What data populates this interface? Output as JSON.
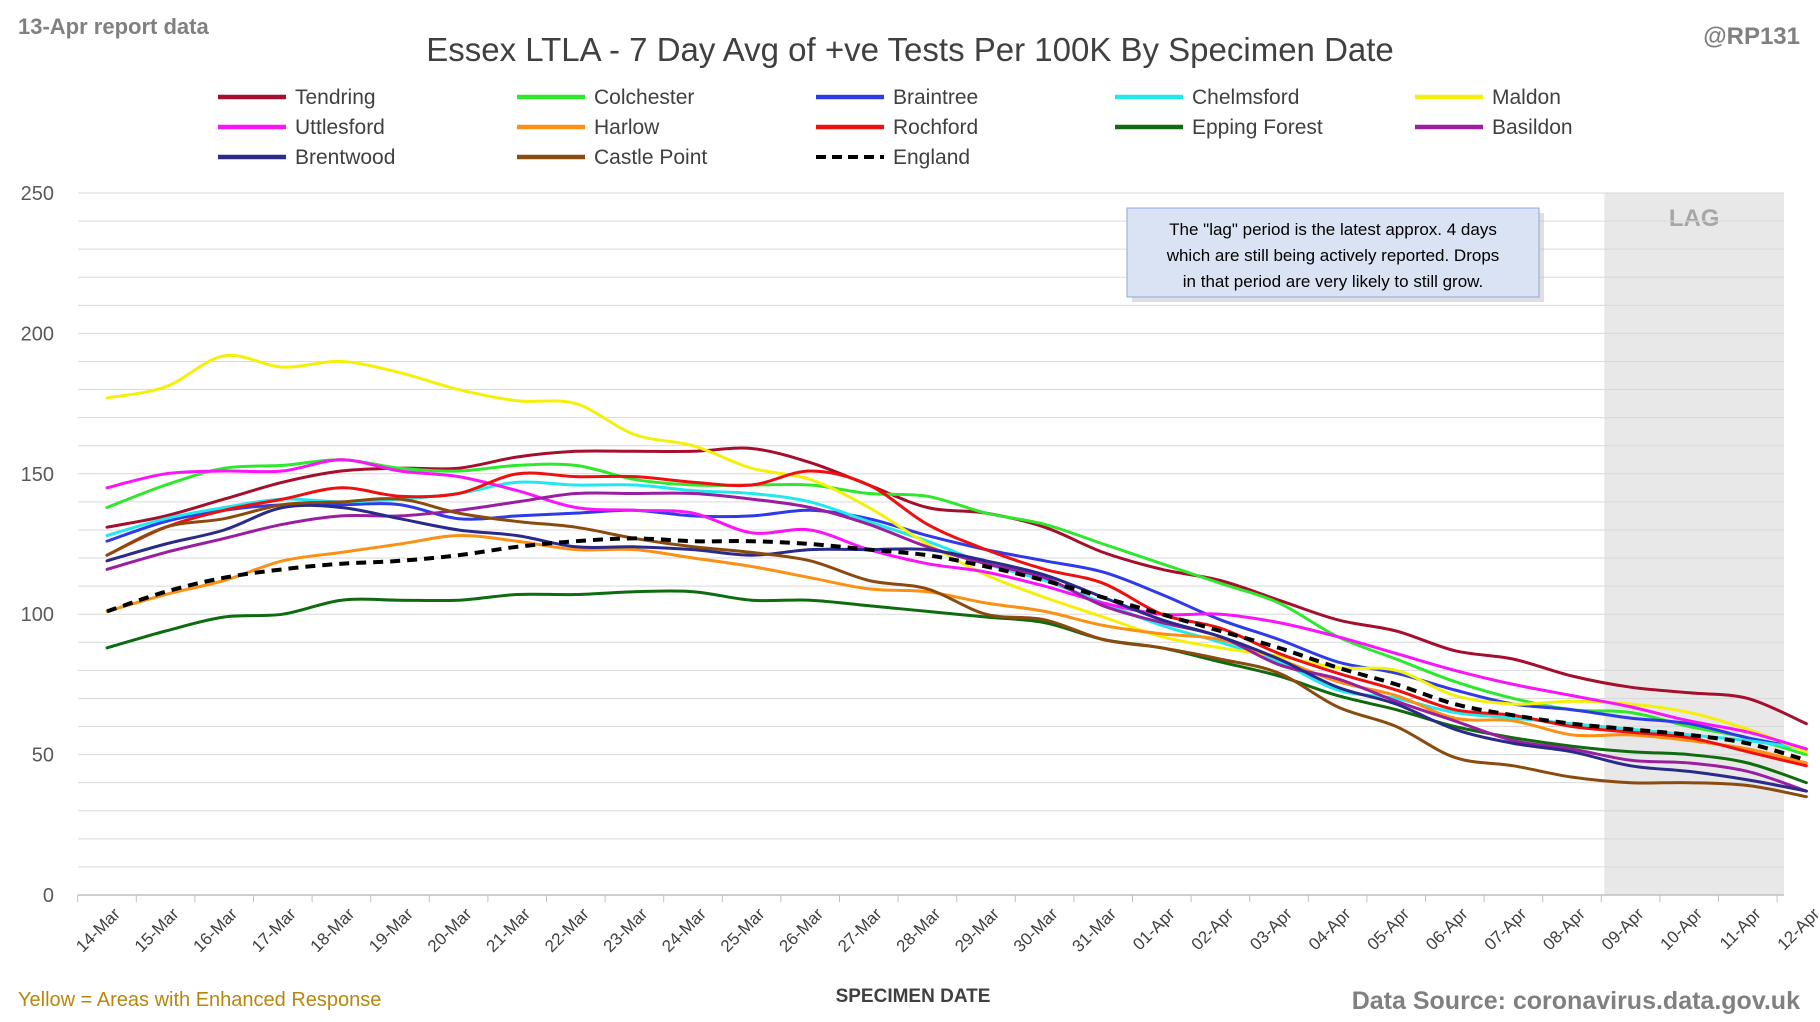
{
  "header": {
    "report_date": "13-Apr report data",
    "title": "Essex LTLA - 7 Day Avg of +ve Tests Per 100K By Specimen Date",
    "handle": "@RP131"
  },
  "footer": {
    "note": "Yellow = Areas with Enhanced Response",
    "source": "Data Source: coronavirus.data.gov.uk"
  },
  "annotation": {
    "lines": [
      "The \"lag\" period is the latest approx. 4 days",
      "which are still being actively reported.  Drops",
      "in that period are very likely to still grow."
    ]
  },
  "colors": {
    "title": "#404040",
    "report_date": "#808080",
    "footer_note": "#b8860b",
    "source": "#808080",
    "lag_fill": "#e8e8e8",
    "lag_label": "#a6a6a6",
    "grid": "#d9d9d9",
    "annotation_fill": "#dae3f3",
    "annotation_border": "#8faadc"
  },
  "chart_data": {
    "type": "line",
    "title": "Essex LTLA - 7 Day Avg of +ve Tests Per 100K By Specimen Date",
    "xlabel": "SPECIMEN DATE",
    "ylabel": "",
    "ylim": [
      0,
      250
    ],
    "yticks": [
      0,
      50,
      100,
      150,
      200,
      250
    ],
    "grid": true,
    "legend_position": "top",
    "lag_label": "LAG",
    "lag_start_index": 25,
    "categories": [
      "14-Mar",
      "15-Mar",
      "16-Mar",
      "17-Mar",
      "18-Mar",
      "19-Mar",
      "20-Mar",
      "21-Mar",
      "22-Mar",
      "23-Mar",
      "24-Mar",
      "25-Mar",
      "26-Mar",
      "27-Mar",
      "28-Mar",
      "29-Mar",
      "30-Mar",
      "31-Mar",
      "01-Apr",
      "02-Apr",
      "03-Apr",
      "04-Apr",
      "05-Apr",
      "06-Apr",
      "07-Apr",
      "08-Apr",
      "09-Apr",
      "10-Apr",
      "11-Apr",
      "12-Apr"
    ],
    "series": [
      {
        "name": "Tendring",
        "color": "#a50f2d",
        "dashed": false,
        "values": [
          131,
          135,
          141,
          147,
          151,
          152,
          152,
          156,
          158,
          158,
          158,
          159,
          154,
          146,
          138,
          136,
          131,
          122,
          116,
          112,
          105,
          98,
          94,
          87,
          84,
          78,
          74,
          72,
          70,
          61
        ]
      },
      {
        "name": "Colchester",
        "color": "#2ee82e",
        "dashed": false,
        "values": [
          138,
          146,
          152,
          153,
          155,
          152,
          151,
          153,
          153,
          148,
          146,
          146,
          146,
          143,
          142,
          136,
          132,
          125,
          118,
          111,
          104,
          92,
          84,
          76,
          70,
          66,
          65,
          60,
          56,
          50
        ]
      },
      {
        "name": "Braintree",
        "color": "#2e3be6",
        "dashed": false,
        "values": [
          126,
          133,
          137,
          139,
          139,
          139,
          134,
          135,
          136,
          137,
          135,
          135,
          137,
          134,
          128,
          123,
          119,
          115,
          107,
          98,
          91,
          83,
          79,
          73,
          68,
          66,
          63,
          61,
          56,
          52
        ]
      },
      {
        "name": "Chelmsford",
        "color": "#22e8ee",
        "dashed": false,
        "values": [
          128,
          134,
          138,
          141,
          140,
          141,
          143,
          147,
          146,
          146,
          144,
          143,
          140,
          133,
          126,
          118,
          112,
          104,
          96,
          90,
          83,
          73,
          70,
          65,
          63,
          61,
          59,
          57,
          55,
          52
        ]
      },
      {
        "name": "Maldon",
        "color": "#f5f00a",
        "dashed": false,
        "values": [
          177,
          181,
          192,
          188,
          190,
          186,
          180,
          176,
          175,
          164,
          160,
          152,
          148,
          138,
          125,
          114,
          106,
          99,
          92,
          88,
          85,
          81,
          80,
          71,
          68,
          69,
          68,
          65,
          59,
          51
        ]
      },
      {
        "name": "Uttlesford",
        "color": "#fa14fa",
        "dashed": false,
        "values": [
          145,
          150,
          151,
          151,
          155,
          151,
          149,
          144,
          138,
          137,
          136,
          129,
          130,
          123,
          118,
          115,
          110,
          104,
          100,
          100,
          97,
          92,
          86,
          80,
          75,
          71,
          67,
          62,
          58,
          52
        ]
      },
      {
        "name": "Harlow",
        "color": "#fa9014",
        "dashed": false,
        "values": [
          101,
          107,
          112,
          119,
          122,
          125,
          128,
          126,
          123,
          123,
          120,
          117,
          113,
          109,
          108,
          104,
          101,
          96,
          93,
          91,
          84,
          76,
          71,
          63,
          62,
          57,
          57,
          55,
          52,
          47
        ]
      },
      {
        "name": "Rochford",
        "color": "#ee1010",
        "dashed": false,
        "values": [
          121,
          131,
          137,
          141,
          145,
          142,
          143,
          150,
          149,
          149,
          147,
          146,
          151,
          146,
          132,
          123,
          116,
          111,
          100,
          95,
          86,
          79,
          73,
          66,
          64,
          60,
          58,
          56,
          51,
          46
        ]
      },
      {
        "name": "Epping Forest",
        "color": "#0e6b0e",
        "dashed": false,
        "values": [
          88,
          94,
          99,
          100,
          105,
          105,
          105,
          107,
          107,
          108,
          108,
          105,
          105,
          103,
          101,
          99,
          97,
          91,
          88,
          83,
          78,
          71,
          66,
          60,
          56,
          53,
          51,
          50,
          47,
          40
        ]
      },
      {
        "name": "Basildon",
        "color": "#9a1fa0",
        "dashed": false,
        "values": [
          116,
          122,
          127,
          132,
          135,
          135,
          137,
          140,
          143,
          143,
          143,
          141,
          138,
          132,
          124,
          118,
          113,
          103,
          97,
          92,
          82,
          77,
          69,
          62,
          55,
          52,
          48,
          47,
          44,
          37
        ]
      },
      {
        "name": "Brentwood",
        "color": "#2a2a8a",
        "dashed": false,
        "values": [
          119,
          125,
          130,
          138,
          138,
          134,
          130,
          128,
          124,
          124,
          123,
          121,
          123,
          123,
          123,
          119,
          114,
          106,
          98,
          92,
          84,
          74,
          68,
          59,
          54,
          51,
          46,
          44,
          41,
          37
        ]
      },
      {
        "name": "Castle Point",
        "color": "#8b4a0e",
        "dashed": false,
        "values": [
          121,
          131,
          134,
          139,
          140,
          141,
          136,
          133,
          131,
          127,
          124,
          122,
          119,
          112,
          109,
          100,
          98,
          91,
          88,
          84,
          79,
          67,
          60,
          49,
          46,
          42,
          40,
          40,
          39,
          35
        ]
      },
      {
        "name": "England",
        "color": "#000000",
        "dashed": true,
        "values": [
          101,
          108,
          113,
          116,
          118,
          119,
          121,
          124,
          126,
          127,
          126,
          126,
          125,
          123,
          121,
          117,
          112,
          106,
          100,
          94,
          88,
          81,
          75,
          68,
          64,
          61,
          59,
          57,
          54,
          48
        ]
      }
    ]
  }
}
